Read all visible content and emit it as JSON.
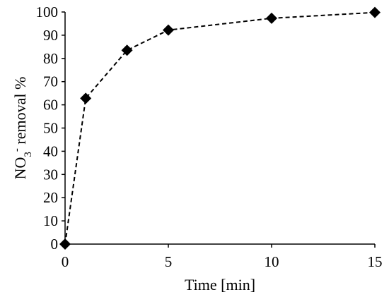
{
  "chart_data": {
    "type": "line",
    "xlabel": "Time [min]",
    "ylabel": {
      "parts": [
        "NO",
        "3",
        "-",
        " removal %"
      ]
    },
    "x": [
      0,
      1,
      3,
      5,
      10,
      15
    ],
    "series": [
      {
        "values": [
          0,
          62.8,
          83.5,
          92.2,
          97.3,
          99.8
        ],
        "line_style": "dashed",
        "marker": "diamond",
        "color": "#000000"
      }
    ],
    "xlim": [
      0,
      15
    ],
    "ylim": [
      0,
      100
    ],
    "xticks": [
      0,
      5,
      10,
      15
    ],
    "yticks": [
      0,
      10,
      20,
      30,
      40,
      50,
      60,
      70,
      80,
      90,
      100
    ],
    "grid": false,
    "legend": "none"
  }
}
